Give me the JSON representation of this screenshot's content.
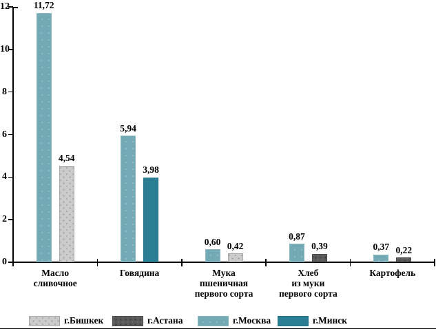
{
  "figure": {
    "background": "#ffffff",
    "bottom_border_color": "#000000"
  },
  "chart_data": {
    "type": "bar",
    "title": "",
    "xlabel": "",
    "ylabel": "",
    "grid": false,
    "y_axis": {
      "min": 0,
      "max": 12,
      "tick_interval": 2,
      "tick_labels": [
        "0",
        "2",
        "4",
        "6",
        "8",
        "10",
        "12"
      ]
    },
    "categories": [
      "Масло сливочное",
      "Говядина",
      "Мука пшеничная первого сорта",
      "Хлеб из муки первого сорта",
      "Картофель"
    ],
    "series": [
      {
        "name": "г.Бишкек",
        "color": "#cbcbcb",
        "pattern": "dots-light",
        "values": [
          4.54,
          null,
          0.42,
          null,
          null
        ]
      },
      {
        "name": "г.Астана",
        "color": "#595959",
        "pattern": "dots-dark",
        "values": [
          null,
          null,
          null,
          0.39,
          0.22
        ]
      },
      {
        "name": "г.Москва",
        "color": "#74aab6",
        "pattern": "solid-faint-dots",
        "values": [
          11.72,
          5.94,
          0.6,
          0.87,
          0.37
        ]
      },
      {
        "name": "г.Минск",
        "color": "#2b7e93",
        "pattern": "solid",
        "values": [
          null,
          3.98,
          null,
          null,
          null
        ]
      }
    ],
    "bar_groups": [
      {
        "category": "Масло сливочное",
        "label_lines": [
          "Масло",
          "сливочное"
        ],
        "bars": [
          {
            "series": "г.Москва",
            "value": 11.72,
            "value_label": "11,72"
          },
          {
            "series": "г.Бишкек",
            "value": 4.54,
            "value_label": "4,54"
          }
        ]
      },
      {
        "category": "Говядина",
        "label_lines": [
          "Говядина"
        ],
        "bars": [
          {
            "series": "г.Москва",
            "value": 5.94,
            "value_label": "5,94"
          },
          {
            "series": "г.Минск",
            "value": 3.98,
            "value_label": "3,98"
          }
        ]
      },
      {
        "category": "Мука пшеничная первого сорта",
        "label_lines": [
          "Мука",
          "пшеничная",
          "первого сорта"
        ],
        "bars": [
          {
            "series": "г.Москва",
            "value": 0.6,
            "value_label": "0,60"
          },
          {
            "series": "г.Бишкек",
            "value": 0.42,
            "value_label": "0,42"
          }
        ]
      },
      {
        "category": "Хлеб из муки первого сорта",
        "label_lines": [
          "Хлеб",
          "из муки",
          "первого сорта"
        ],
        "bars": [
          {
            "series": "г.Москва",
            "value": 0.87,
            "value_label": "0,87"
          },
          {
            "series": "г.Астана",
            "value": 0.39,
            "value_label": "0,39"
          }
        ]
      },
      {
        "category": "Картофель",
        "label_lines": [
          "Картофель"
        ],
        "bars": [
          {
            "series": "г.Москва",
            "value": 0.37,
            "value_label": "0,37"
          },
          {
            "series": "г.Астана",
            "value": 0.22,
            "value_label": "0,22"
          }
        ]
      }
    ],
    "legend": {
      "position": "bottom",
      "entries": [
        "г.Бишкек",
        "г.Астана",
        "г.Москва",
        "г.Минск"
      ]
    }
  }
}
